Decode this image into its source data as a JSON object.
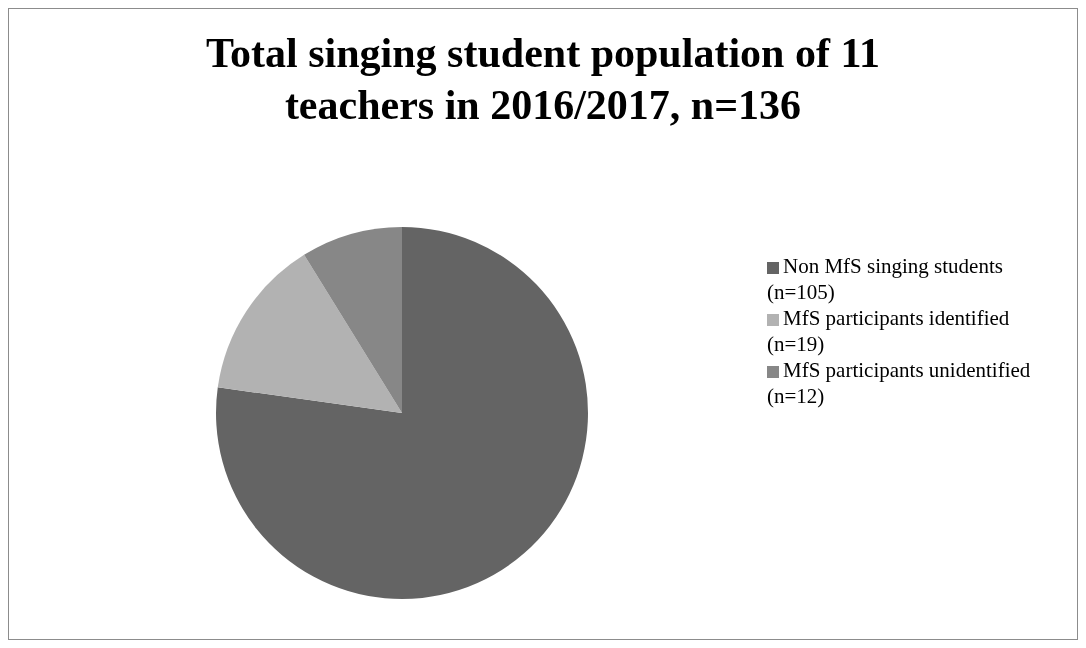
{
  "chart_data": {
    "type": "pie",
    "title": "Total singing student population of 11 teachers in 2016/2017, n=136",
    "categories": [
      "Non MfS singing students (n=105)",
      "MfS participants identified (n=19)",
      "MfS participants unidentified (n=12)"
    ],
    "values": [
      105,
      19,
      12
    ],
    "colors": [
      "#646464",
      "#b2b2b2",
      "#878787"
    ],
    "legend": "right"
  }
}
